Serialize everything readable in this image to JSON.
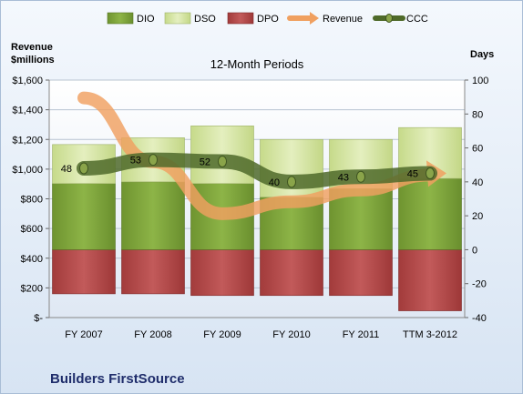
{
  "chart_data": {
    "type": "bar",
    "subtitle": "12-Month Periods",
    "company": "Builders FirstSource",
    "left_axis_title_line1": "Revenue",
    "left_axis_title_line2": "$millions",
    "right_axis_title": "Days",
    "categories": [
      "FY 2007",
      "FY 2008",
      "FY 2009",
      "FY 2010",
      "FY 2011",
      "TTM 3-2012"
    ],
    "left_ylim": [
      0,
      1600
    ],
    "left_ticks": [
      "$-",
      "$200",
      "$400",
      "$600",
      "$800",
      "$1,000",
      "$1,200",
      "$1,400",
      "$1,600"
    ],
    "left_tick_values": [
      0,
      200,
      400,
      600,
      800,
      1000,
      1200,
      1400,
      1600
    ],
    "right_ylim": [
      -40,
      100
    ],
    "right_ticks": [
      "-40",
      "-20",
      "0",
      "20",
      "40",
      "60",
      "80",
      "100"
    ],
    "right_tick_values": [
      -40,
      -20,
      0,
      20,
      40,
      60,
      80,
      100
    ],
    "legend_position": "top",
    "grid": true,
    "series": [
      {
        "name": "DIO",
        "axis": "right",
        "kind": "stacked-bar-positive",
        "color": "#7ea33a",
        "values": [
          39,
          40,
          39,
          31,
          36,
          42
        ]
      },
      {
        "name": "DSO",
        "axis": "right",
        "kind": "stacked-bar-positive",
        "color": "#d7e6a8",
        "values": [
          23,
          26,
          34,
          34,
          29,
          30
        ]
      },
      {
        "name": "DPO",
        "axis": "right",
        "kind": "negative-bar",
        "color": "#b64a4a",
        "values": [
          -26,
          -26,
          -27,
          -27,
          -27,
          -36
        ]
      },
      {
        "name": "Revenue",
        "axis": "left",
        "kind": "arrow-line",
        "color": "#f0a060",
        "values": [
          1480,
          1050,
          700,
          780,
          860,
          960
        ]
      },
      {
        "name": "CCC",
        "axis": "right",
        "kind": "line-markers",
        "color": "#4f6a2a",
        "values": [
          48,
          53,
          52,
          40,
          43,
          45
        ]
      }
    ],
    "ccc_labels": [
      "48",
      "53",
      "52",
      "40",
      "43",
      "45"
    ]
  }
}
